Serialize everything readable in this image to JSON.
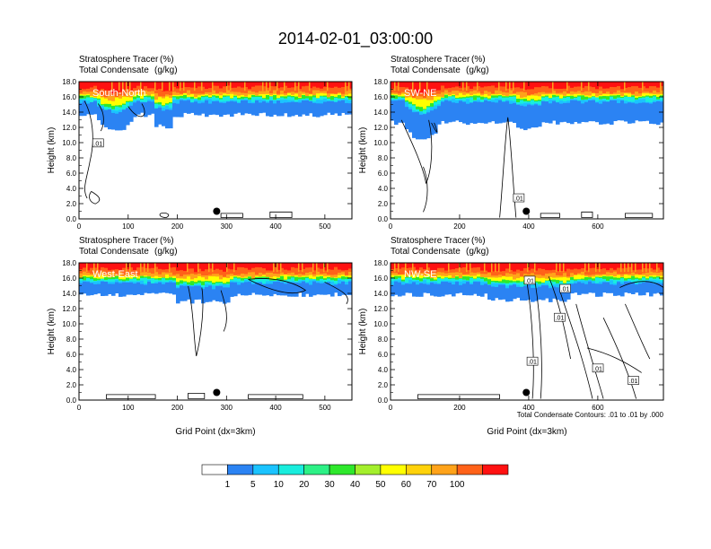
{
  "title": "2014-02-01_03:00:00",
  "colorbar": {
    "colors": [
      "#ffffff",
      "#2b83f3",
      "#1bc3ff",
      "#19eddd",
      "#2df186",
      "#2ee82c",
      "#a4ef2c",
      "#ffff00",
      "#ffd20a",
      "#ffa31a",
      "#ff6219",
      "#ff1111"
    ],
    "tick_labels": [
      "1",
      "5",
      "10",
      "20",
      "30",
      "40",
      "50",
      "60",
      "70",
      "100"
    ]
  },
  "chart_data": [
    {
      "type": "heatmap",
      "panel_label": "South-North",
      "subtitle_left_1": "Stratosphere Tracer",
      "subtitle_right_1": "(%)",
      "subtitle_left_2": "Total Condensate",
      "subtitle_right_2": "(g/kg)",
      "ylabel": "Height (km)",
      "xlabel": "",
      "xlim": [
        0,
        555
      ],
      "ylim": [
        0,
        18
      ],
      "x_ticks": [
        "0",
        "100",
        "200",
        "300",
        "400",
        "500"
      ],
      "y_ticks": [
        "0.0",
        "2.0",
        "4.0",
        "6.0",
        "8.0",
        "10.0",
        "12.0",
        "14.0",
        "16.0",
        "18.0"
      ],
      "tracer_base_km": 14.0,
      "marker": {
        "x": 280,
        "height_km": 1.0
      },
      "contour_labels": [
        ".01"
      ],
      "note": ""
    },
    {
      "type": "heatmap",
      "panel_label": "SW-NE",
      "subtitle_left_1": "Stratosphere Tracer",
      "subtitle_right_1": "(%)",
      "subtitle_left_2": "Total Condensate",
      "subtitle_right_2": "(g/kg)",
      "ylabel": "Height (km)",
      "xlabel": "",
      "xlim": [
        0,
        790
      ],
      "ylim": [
        0,
        18
      ],
      "x_ticks": [
        "0",
        "200",
        "400",
        "600"
      ],
      "y_ticks": [
        "0.0",
        "2.0",
        "4.0",
        "6.0",
        "8.0",
        "10.0",
        "12.0",
        "14.0",
        "16.0",
        "18.0"
      ],
      "tracer_base_km": 13.0,
      "marker": {
        "x": 393,
        "height_km": 1.0
      },
      "contour_labels": [
        ".01"
      ],
      "note": ""
    },
    {
      "type": "heatmap",
      "panel_label": "West-East",
      "subtitle_left_1": "Stratosphere Tracer",
      "subtitle_right_1": "(%)",
      "subtitle_left_2": "Total Condensate",
      "subtitle_right_2": "(g/kg)",
      "ylabel": "Height (km)",
      "xlabel": "Grid Point (dx=3km)",
      "xlim": [
        0,
        555
      ],
      "ylim": [
        0,
        18
      ],
      "x_ticks": [
        "0",
        "100",
        "200",
        "300",
        "400",
        "500"
      ],
      "y_ticks": [
        "0.0",
        "2.0",
        "4.0",
        "6.0",
        "8.0",
        "10.0",
        "12.0",
        "14.0",
        "16.0",
        "18.0"
      ],
      "tracer_base_km": 14.2,
      "marker": {
        "x": 280,
        "height_km": 1.0
      },
      "contour_labels": [],
      "note": ""
    },
    {
      "type": "heatmap",
      "panel_label": "NW-SE",
      "subtitle_left_1": "Stratosphere Tracer",
      "subtitle_right_1": "(%)",
      "subtitle_left_2": "Total Condensate",
      "subtitle_right_2": "(g/kg)",
      "ylabel": "Height (km)",
      "xlabel": "Grid Point (dx=3km)",
      "xlim": [
        0,
        790
      ],
      "ylim": [
        0,
        18
      ],
      "x_ticks": [
        "0",
        "200",
        "400",
        "600"
      ],
      "y_ticks": [
        "0.0",
        "2.0",
        "4.0",
        "6.0",
        "8.0",
        "10.0",
        "12.0",
        "14.0",
        "16.0",
        "18.0"
      ],
      "tracer_base_km": 14.2,
      "marker": {
        "x": 393,
        "height_km": 1.0
      },
      "contour_labels": [
        ".01",
        ".01",
        ".01",
        ".01",
        ".01",
        ".01"
      ],
      "note": "Total Condensate Contours: .01 to .01 by .000"
    }
  ]
}
